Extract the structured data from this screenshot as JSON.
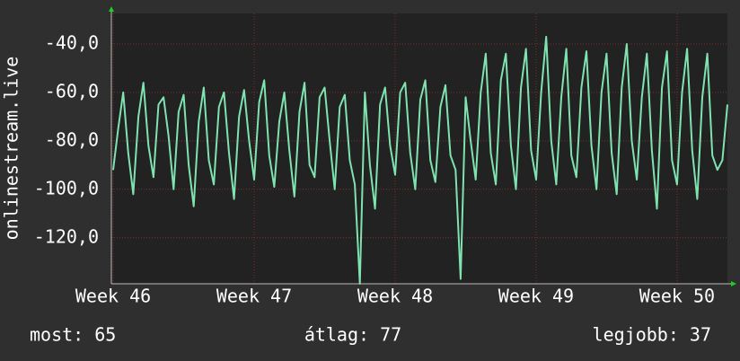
{
  "chart_data": {
    "type": "line",
    "y_label": "onlinestream.live",
    "color": "#7fe3b0",
    "grid": true,
    "xlim": [
      -0.09,
      30.5
    ],
    "ylim": [
      -139,
      -27.4
    ],
    "xticks": [
      {
        "value": 0,
        "label": "Week 46"
      },
      {
        "value": 7,
        "label": "Week 47"
      },
      {
        "value": 14,
        "label": "Week 48"
      },
      {
        "value": 21,
        "label": "Week 49"
      },
      {
        "value": 28,
        "label": "Week 50"
      }
    ],
    "yticks": [
      {
        "value": -40,
        "label": "-40,0"
      },
      {
        "value": -60,
        "label": "-60,0"
      },
      {
        "value": -80,
        "label": "-80,0"
      },
      {
        "value": -100,
        "label": "-100,0"
      },
      {
        "value": -120,
        "label": "-120,0"
      }
    ],
    "x": [
      0,
      0.25,
      0.5,
      0.75,
      1,
      1.25,
      1.5,
      1.75,
      2,
      2.25,
      2.5,
      2.75,
      3,
      3.25,
      3.5,
      3.75,
      4,
      4.25,
      4.5,
      4.75,
      5,
      5.25,
      5.5,
      5.75,
      6,
      6.25,
      6.5,
      6.75,
      7,
      7.25,
      7.5,
      7.75,
      8,
      8.25,
      8.5,
      8.75,
      9,
      9.25,
      9.5,
      9.75,
      10,
      10.25,
      10.5,
      10.75,
      11,
      11.25,
      11.5,
      11.75,
      12,
      12.25,
      12.5,
      12.75,
      13,
      13.25,
      13.5,
      13.75,
      14,
      14.25,
      14.5,
      14.75,
      15,
      15.25,
      15.5,
      15.75,
      16,
      16.25,
      16.5,
      16.75,
      17,
      17.25,
      17.5,
      17.75,
      18,
      18.25,
      18.5,
      18.75,
      19,
      19.25,
      19.5,
      19.75,
      20,
      20.25,
      20.5,
      20.75,
      21,
      21.25,
      21.5,
      21.75,
      22,
      22.25,
      22.5,
      22.75,
      23,
      23.25,
      23.5,
      23.75,
      24,
      24.25,
      24.5,
      24.75,
      25,
      25.25,
      25.5,
      25.75,
      26,
      26.25,
      26.5,
      26.75,
      27,
      27.25,
      27.5,
      27.75,
      28,
      28.25,
      28.5,
      28.75,
      29,
      29.25,
      29.5,
      29.75,
      30,
      30.25,
      30.5
    ],
    "values": [
      -92,
      -75,
      -60,
      -85,
      -102,
      -70,
      -56,
      -82,
      -95,
      -65,
      -62,
      -78,
      -100,
      -68,
      -61,
      -90,
      -107,
      -72,
      -58,
      -88,
      -98,
      -66,
      -60,
      -85,
      -104,
      -70,
      -59,
      -80,
      -96,
      -64,
      -55,
      -86,
      -99,
      -72,
      -60,
      -84,
      -103,
      -68,
      -56,
      -90,
      -95,
      -62,
      -58,
      -80,
      -100,
      -66,
      -61,
      -88,
      -98,
      -139,
      -60,
      -90,
      -108,
      -65,
      -58,
      -82,
      -94,
      -60,
      -56,
      -85,
      -100,
      -63,
      -55,
      -88,
      -97,
      -66,
      -57,
      -86,
      -92,
      -137,
      -62,
      -80,
      -96,
      -60,
      -44,
      -85,
      -98,
      -55,
      -44,
      -82,
      -100,
      -58,
      -42,
      -84,
      -96,
      -60,
      -37,
      -80,
      -98,
      -62,
      -42,
      -86,
      -95,
      -58,
      -43,
      -82,
      -100,
      -60,
      -44,
      -85,
      -102,
      -58,
      -40,
      -80,
      -96,
      -62,
      -44,
      -84,
      -108,
      -58,
      -43,
      -88,
      -98,
      -60,
      -42,
      -84,
      -104,
      -62,
      -44,
      -86,
      -92,
      -88,
      -65
    ],
    "footer": [
      "most: 65",
      "átlag: 77",
      "legjobb: 37"
    ]
  }
}
